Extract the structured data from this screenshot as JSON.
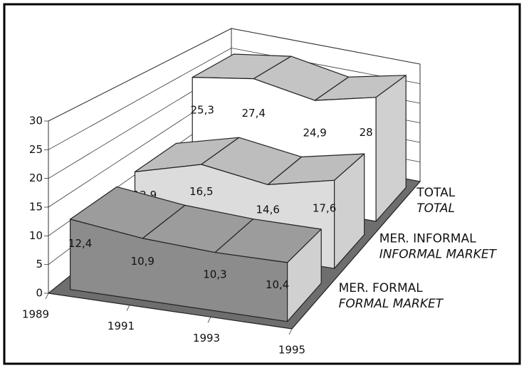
{
  "chart_data": {
    "type": "ribbon3d",
    "categories": [
      "1989",
      "1991",
      "1993",
      "1995"
    ],
    "series": [
      {
        "name": "MER. FORMAL",
        "translation": "FORMAL MARKET",
        "color": "#8c8c8c",
        "top_color": "#9c9c9c",
        "values": [
          12.4,
          10.9,
          10.3,
          10.4
        ],
        "value_labels": [
          "12,4",
          "10,9",
          "10,3",
          "10,4"
        ]
      },
      {
        "name": "MER. INFORMAL",
        "translation": "INFORMAL MARKET",
        "color": "#dcdcdc",
        "top_color": "#bdbdbd",
        "values": [
          12.9,
          16.5,
          14.6,
          17.6
        ],
        "value_labels": [
          "12,9",
          "16,5",
          "14,6",
          "17,6"
        ]
      },
      {
        "name": "TOTAL",
        "translation": "TOTAL",
        "color": "#ffffff",
        "top_color": "#c4c4c4",
        "values": [
          25.3,
          27.4,
          24.9,
          28
        ],
        "value_labels": [
          "25,3",
          "27,4",
          "24,9",
          "28"
        ]
      }
    ],
    "ylim": [
      0,
      30
    ],
    "yticks": [
      0,
      5,
      10,
      15,
      20,
      25,
      30
    ],
    "grid": true
  }
}
